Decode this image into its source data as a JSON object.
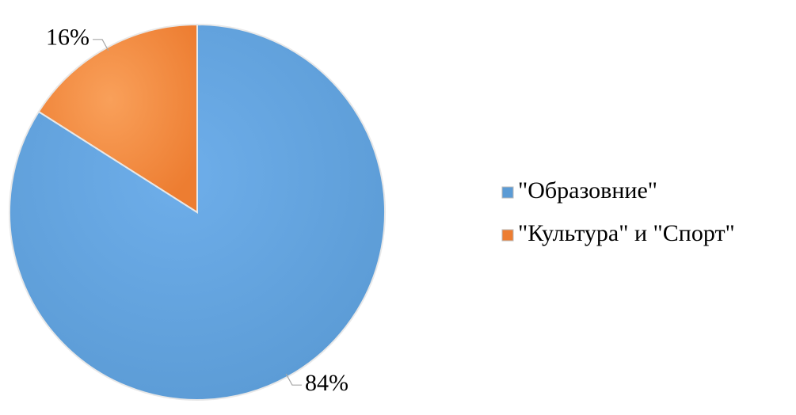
{
  "chart_data": {
    "type": "pie",
    "categories": [
      "\"Образовние\"",
      "\"Культура\" и \"Спорт\""
    ],
    "values": [
      84,
      16
    ],
    "value_labels": [
      "84%",
      "16%"
    ],
    "colors": [
      "#5b9bd5",
      "#ed7d31"
    ],
    "legend": "right"
  }
}
